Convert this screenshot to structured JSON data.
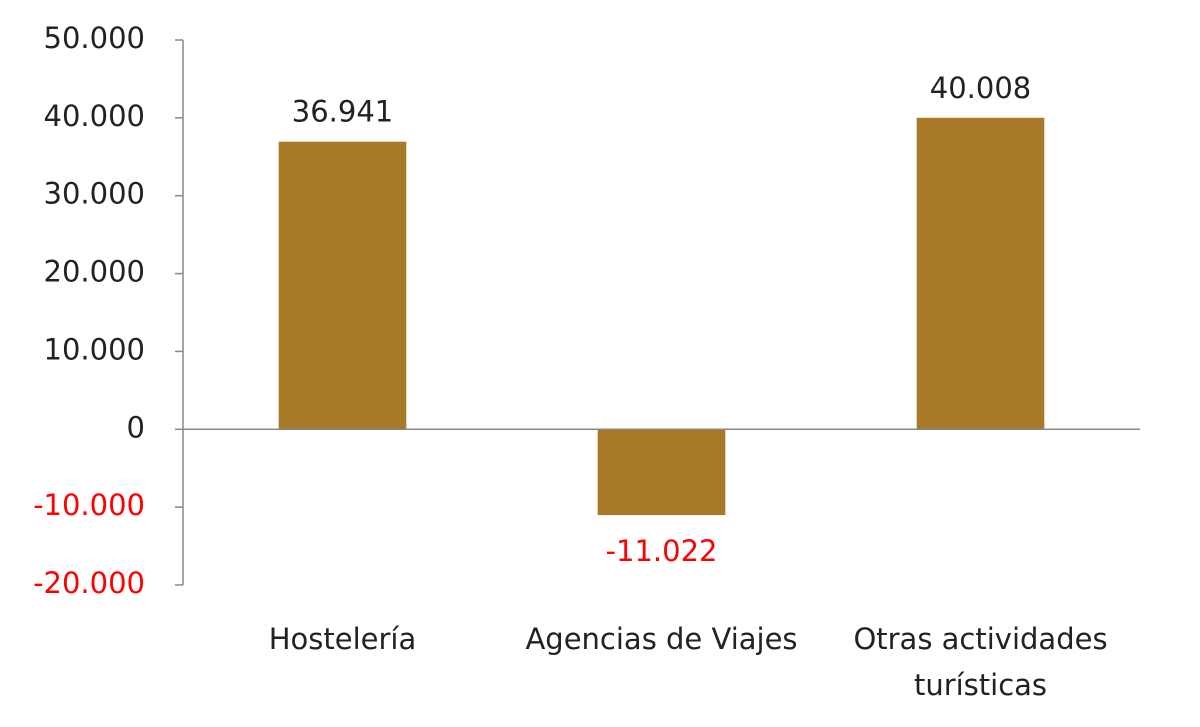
{
  "chart_data": {
    "type": "bar",
    "categories": [
      "Hostelería",
      "Agencias de Viajes",
      "Otras actividades turísticas"
    ],
    "values": [
      36941,
      -11022,
      40008
    ],
    "value_labels": [
      "36.941",
      "-11.022",
      "40.008"
    ],
    "color": "#a87a27",
    "negative_label_color": "#ff0000",
    "ylim": [
      -20000,
      50000
    ],
    "yticks": [
      {
        "value": -20000,
        "label": "-20.000"
      },
      {
        "value": -10000,
        "label": "-10.000"
      },
      0,
      {
        "value": 10000,
        "label": "10.000"
      },
      {
        "value": 20000,
        "label": "20.000"
      },
      {
        "value": 30000,
        "label": "30.000"
      },
      {
        "value": 40000,
        "label": "40.000"
      },
      {
        "value": 50000,
        "label": "50.000"
      }
    ],
    "grid": false
  }
}
